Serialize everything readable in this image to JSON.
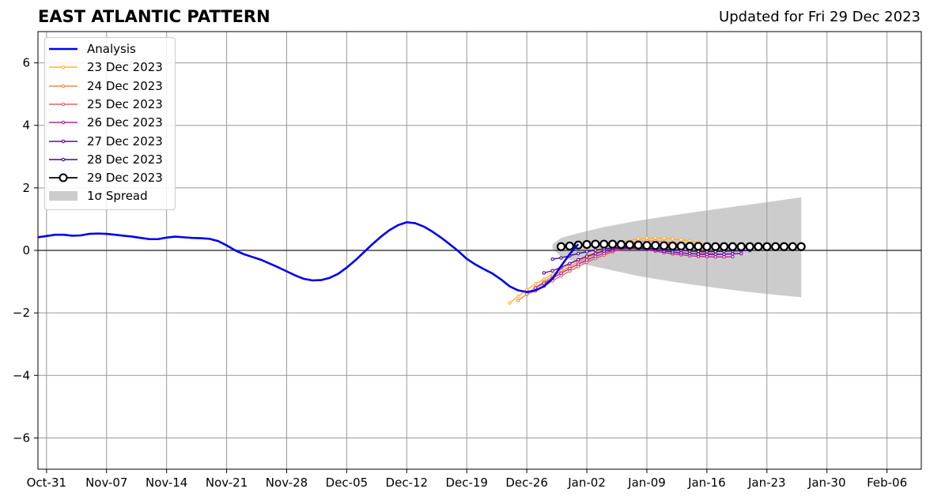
{
  "header": {
    "title": "EAST ATLANTIC PATTERN",
    "updated": "Updated for Fri 29 Dec 2023"
  },
  "chart_data": {
    "type": "line",
    "title": "EAST ATLANTIC PATTERN",
    "subtitle": "Updated for Fri 29 Dec 2023",
    "xlabel": "",
    "ylabel": "",
    "x_axis": {
      "start_date": "2023-10-30",
      "end_date": "2024-02-10",
      "ticks": [
        "Oct-31",
        "Nov-07",
        "Nov-14",
        "Nov-21",
        "Nov-28",
        "Dec-05",
        "Dec-12",
        "Dec-19",
        "Dec-26",
        "Jan-02",
        "Jan-09",
        "Jan-16",
        "Jan-23",
        "Jan-30",
        "Feb-06"
      ],
      "tick_dates": [
        "2023-10-31",
        "2023-11-07",
        "2023-11-14",
        "2023-11-21",
        "2023-11-28",
        "2023-12-05",
        "2023-12-12",
        "2023-12-19",
        "2023-12-26",
        "2024-01-02",
        "2024-01-09",
        "2024-01-16",
        "2024-01-23",
        "2024-01-30",
        "2024-02-06"
      ]
    },
    "ylim": [
      -7,
      7
    ],
    "yticks": [
      -6,
      -4,
      -2,
      0,
      2,
      4,
      6
    ],
    "ytick_labels": [
      "−6",
      "−4",
      "−2",
      "0",
      "2",
      "4",
      "6"
    ],
    "grid": true,
    "legend_position": "upper-left",
    "legend": [
      "Analysis",
      "23 Dec 2023",
      "24 Dec 2023",
      "25 Dec 2023",
      "26 Dec 2023",
      "27 Dec 2023",
      "28 Dec 2023",
      "29 Dec 2023",
      "1σ Spread"
    ],
    "analysis": {
      "name": "Analysis",
      "color": "#0000ee",
      "start_date": "2023-10-30",
      "values": [
        0.42,
        0.46,
        0.5,
        0.5,
        0.47,
        0.48,
        0.53,
        0.54,
        0.53,
        0.5,
        0.47,
        0.44,
        0.4,
        0.36,
        0.36,
        0.41,
        0.44,
        0.42,
        0.4,
        0.39,
        0.37,
        0.3,
        0.16,
        0.0,
        -0.12,
        -0.21,
        -0.3,
        -0.42,
        -0.54,
        -0.67,
        -0.8,
        -0.91,
        -0.96,
        -0.95,
        -0.88,
        -0.75,
        -0.55,
        -0.32,
        -0.06,
        0.2,
        0.44,
        0.65,
        0.81,
        0.9,
        0.87,
        0.76,
        0.6,
        0.41,
        0.2,
        -0.02,
        -0.27,
        -0.45,
        -0.6,
        -0.74,
        -0.93,
        -1.15,
        -1.28,
        -1.33,
        -1.28,
        -1.15,
        -0.9,
        -0.5,
        -0.12,
        0.2
      ]
    },
    "series": [
      {
        "name": "23 Dec 2023",
        "color": "#fdb42f",
        "start_date": "2023-12-24",
        "values": [
          -1.68,
          -1.47,
          -1.26,
          -1.07,
          -0.92,
          -0.76,
          -0.6,
          -0.45,
          -0.31,
          -0.18,
          -0.06,
          0.06,
          0.17,
          0.26,
          0.32,
          0.37,
          0.39,
          0.4,
          0.39,
          0.37,
          0.34,
          0.3,
          0.26,
          0.2
        ]
      },
      {
        "name": "24 Dec 2023",
        "color": "#f48849",
        "start_date": "2023-12-25",
        "values": [
          -1.6,
          -1.4,
          -1.19,
          -1.0,
          -0.83,
          -0.67,
          -0.52,
          -0.37,
          -0.24,
          -0.12,
          -0.01,
          0.09,
          0.17,
          0.24,
          0.28,
          0.3,
          0.3,
          0.28,
          0.25,
          0.21,
          0.17,
          0.13,
          0.09,
          0.05
        ]
      },
      {
        "name": "25 Dec 2023",
        "color": "#e16462",
        "start_date": "2023-12-26",
        "values": [
          -1.4,
          -1.3,
          -1.14,
          -0.97,
          -0.82,
          -0.66,
          -0.52,
          -0.38,
          -0.26,
          -0.15,
          -0.05,
          0.03,
          0.09,
          0.13,
          0.14,
          0.13,
          0.1,
          0.06,
          0.02,
          -0.02,
          -0.06,
          -0.09,
          -0.11,
          -0.13
        ]
      },
      {
        "name": "26 Dec 2023",
        "color": "#b12a90",
        "start_date": "2023-12-27",
        "values": [
          -1.2,
          -1.05,
          -0.89,
          -0.73,
          -0.58,
          -0.44,
          -0.31,
          -0.19,
          -0.09,
          -0.01,
          0.04,
          0.06,
          0.05,
          0.02,
          -0.02,
          -0.07,
          -0.11,
          -0.14,
          -0.17,
          -0.19,
          -0.2,
          -0.21,
          -0.21,
          -0.2
        ]
      },
      {
        "name": "27 Dec 2023",
        "color": "#6a00a8",
        "start_date": "2023-12-28",
        "values": [
          -0.72,
          -0.65,
          -0.54,
          -0.42,
          -0.3,
          -0.19,
          -0.1,
          -0.02,
          0.04,
          0.07,
          0.08,
          0.07,
          0.05,
          0.02,
          -0.02,
          -0.05,
          -0.08,
          -0.1,
          -0.12,
          -0.13,
          -0.13,
          -0.12,
          -0.11,
          -0.1
        ]
      },
      {
        "name": "28 Dec 2023",
        "color": "#3a0a8a",
        "start_date": "2023-12-29",
        "values": [
          -0.28,
          -0.24,
          -0.17,
          -0.1,
          -0.04,
          0.01,
          0.05,
          0.08,
          0.1,
          0.1,
          0.09,
          0.08,
          0.06,
          0.04,
          0.02,
          0.0,
          -0.02,
          -0.03,
          -0.04,
          -0.04,
          -0.03,
          -0.02,
          -0.01,
          0.0
        ]
      },
      {
        "name": "29 Dec 2023",
        "color": "#000000",
        "start_date": "2023-12-30",
        "marker": "large-open-circle",
        "values": [
          0.12,
          0.14,
          0.17,
          0.19,
          0.2,
          0.2,
          0.2,
          0.19,
          0.18,
          0.17,
          0.16,
          0.16,
          0.15,
          0.14,
          0.14,
          0.13,
          0.13,
          0.12,
          0.12,
          0.12,
          0.12,
          0.12,
          0.12,
          0.12,
          0.12,
          0.12,
          0.12,
          0.12,
          0.12
        ]
      }
    ],
    "spread": {
      "name": "1σ Spread",
      "color": "#cccccc",
      "dates": [
        "2023-12-29",
        "2023-12-30",
        "2024-01-01",
        "2024-01-04",
        "2024-01-08",
        "2024-01-12",
        "2024-01-16",
        "2024-01-20",
        "2024-01-24",
        "2024-01-27"
      ],
      "upper": [
        0.2,
        0.4,
        0.55,
        0.75,
        0.95,
        1.12,
        1.28,
        1.43,
        1.58,
        1.7
      ],
      "lower": [
        0.05,
        -0.2,
        -0.4,
        -0.58,
        -0.82,
        -1.0,
        -1.16,
        -1.3,
        -1.42,
        -1.5
      ]
    }
  }
}
